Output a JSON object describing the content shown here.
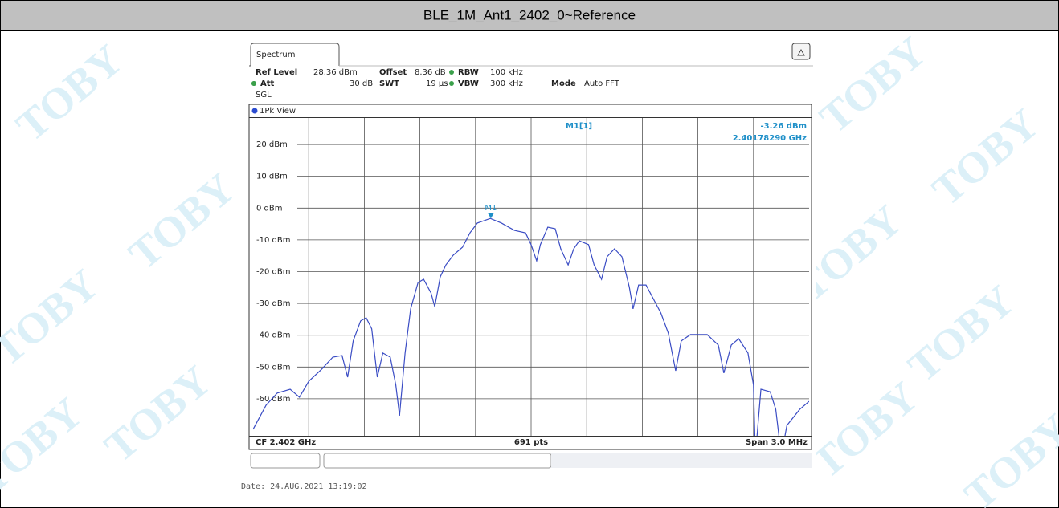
{
  "page_title": "BLE_1M_Ant1_2402_0~Reference",
  "watermark": "TOBY",
  "date": "Date: 24.AUG.2021  13:19:02",
  "chart_data": {
    "type": "line",
    "tab": "Spectrum",
    "settings": [
      {
        "label": "Ref Level",
        "value": "28.36 dBm"
      },
      {
        "label": "Offset",
        "value": "8.36 dB"
      },
      {
        "label": "RBW",
        "value": "100 kHz"
      },
      {
        "label": "Att",
        "value": "30 dB"
      },
      {
        "label": "SWT",
        "value": "19 µs"
      },
      {
        "label": "VBW",
        "value": "300 kHz"
      },
      {
        "label": "Mode",
        "value": "Auto FFT"
      }
    ],
    "sweep": "SGL",
    "view": "1Pk View",
    "center_label": "CF 2.402 GHz",
    "points_label": "691 pts",
    "span_label": "Span 3.0 MHz",
    "xlim": [
      2.4005,
      2.4035
    ],
    "ylim": [
      -71.64,
      28.36
    ],
    "yticks": [
      {
        "value": 20,
        "label": "20 dBm"
      },
      {
        "value": 10,
        "label": "10 dBm"
      },
      {
        "value": 0,
        "label": "0 dBm"
      },
      {
        "value": -10,
        "label": "-10 dBm"
      },
      {
        "value": -20,
        "label": "-20 dBm"
      },
      {
        "value": -30,
        "label": "-30 dBm"
      },
      {
        "value": -40,
        "label": "-40 dBm"
      },
      {
        "value": -50,
        "label": "-50 dBm"
      },
      {
        "value": -60,
        "label": "-60 dBm"
      }
    ],
    "grid": true,
    "series": [
      {
        "color": "#3a4cc4",
        "x": [
          2.4005,
          2.40057,
          2.40063,
          2.4007,
          2.40075,
          2.4008,
          2.40087,
          2.40093,
          2.40098,
          2.40101,
          2.40104,
          2.40108,
          2.40111,
          2.40114,
          2.40117,
          2.4012,
          2.40124,
          2.40127,
          2.40129,
          2.40132,
          2.40135,
          2.40139,
          2.40142,
          2.40146,
          2.40148,
          2.40151,
          2.40154,
          2.40158,
          2.40163,
          2.40167,
          2.40171,
          2.40178,
          2.40184,
          2.40191,
          2.40197,
          2.402,
          2.40203,
          2.40205,
          2.40209,
          2.40213,
          2.40216,
          2.4022,
          2.40223,
          2.40226,
          2.40231,
          2.40234,
          2.40238,
          2.40241,
          2.40245,
          2.40249,
          2.40253,
          2.40255,
          2.40258,
          2.40262,
          2.40265,
          2.4027,
          2.40274,
          2.40278,
          2.40281,
          2.40286,
          2.40295,
          2.40301,
          2.40304,
          2.40308,
          2.40312,
          2.40317,
          2.4032,
          2.40321,
          2.40324,
          2.40329,
          2.40332,
          2.40335,
          2.40338,
          2.40345,
          2.4035
        ],
        "values": [
          -69.6,
          -62.0,
          -58.2,
          -57.0,
          -59.5,
          -54.5,
          -50.7,
          -46.9,
          -46.4,
          -53.2,
          -41.8,
          -35.5,
          -34.5,
          -38.0,
          -53.2,
          -45.6,
          -46.9,
          -55.7,
          -65.3,
          -45.6,
          -31.7,
          -23.4,
          -22.4,
          -26.7,
          -31.0,
          -21.6,
          -17.9,
          -14.8,
          -12.3,
          -7.8,
          -4.7,
          -3.26,
          -4.7,
          -7.0,
          -7.8,
          -11.5,
          -16.6,
          -11.5,
          -6.0,
          -6.5,
          -12.8,
          -17.9,
          -12.8,
          -10.3,
          -11.5,
          -17.9,
          -22.4,
          -15.3,
          -12.8,
          -15.3,
          -24.9,
          -31.7,
          -24.2,
          -24.2,
          -27.5,
          -33.0,
          -39.3,
          -51.2,
          -41.8,
          -39.8,
          -39.8,
          -43.1,
          -51.9,
          -43.1,
          -41.1,
          -45.6,
          -55.7,
          -78,
          -57.0,
          -57.8,
          -63.3,
          -78,
          -68.4,
          -63.3,
          -60.8
        ]
      }
    ],
    "marker": {
      "name": "M1",
      "label": "M1[1]",
      "value": -3.26,
      "value_label": "-3.26 dBm",
      "x": 2.4017829,
      "x_label": "2.40178290 GHz",
      "color": "#1e8fc8"
    }
  }
}
